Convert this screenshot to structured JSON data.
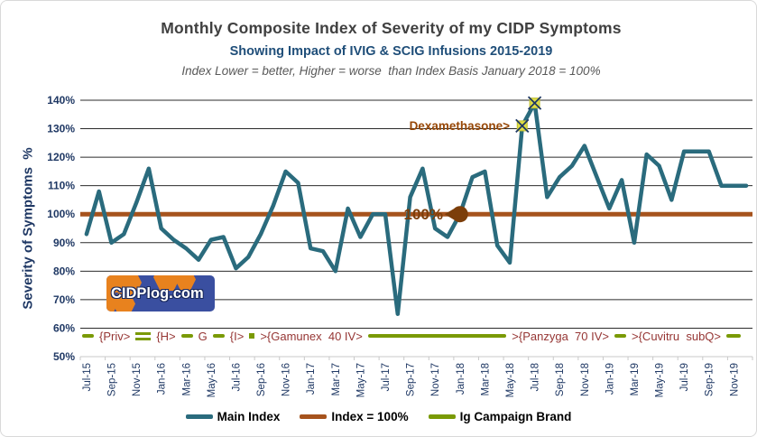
{
  "chart_data": {
    "type": "line",
    "title": "Monthly Composite Index of Severity of my CIDP Symptoms",
    "subtitle": "Showing Impact of IVIG & SCIG Infusions 2015-2019",
    "tagline": "Index Lower = better, Higher = worse  than Index Basis January 2018 = 100%",
    "ylabel": "Severity of Symptoms  %",
    "xlabel": "",
    "ylim": [
      50,
      140
    ],
    "ytick_step": 10,
    "ytick_suffix": "%",
    "xtick_every": 2,
    "grid": true,
    "legend_position": "bottom",
    "x": [
      "Jul-15",
      "Aug-15",
      "Sep-15",
      "Oct-15",
      "Nov-15",
      "Dec-15",
      "Jan-16",
      "Feb-16",
      "Mar-16",
      "Apr-16",
      "May-16",
      "Jun-16",
      "Jul-16",
      "Aug-16",
      "Sep-16",
      "Oct-16",
      "Nov-16",
      "Dec-16",
      "Jan-17",
      "Feb-17",
      "Mar-17",
      "Apr-17",
      "May-17",
      "Jun-17",
      "Jul-17",
      "Aug-17",
      "Sep-17",
      "Oct-17",
      "Nov-17",
      "Dec-17",
      "Jan-18",
      "Feb-18",
      "Mar-18",
      "Apr-18",
      "May-18",
      "Jun-18",
      "Jul-18",
      "Aug-18",
      "Sep-18",
      "Oct-18",
      "Nov-18",
      "Dec-18",
      "Jan-19",
      "Feb-19",
      "Mar-19",
      "Apr-19",
      "May-19",
      "Jun-19",
      "Jul-19",
      "Aug-19",
      "Sep-19",
      "Oct-19",
      "Nov-19",
      "Dec-19"
    ],
    "series": [
      {
        "name": "Main Index",
        "color": "#2A6B7D",
        "values": [
          93,
          108,
          90,
          93,
          104,
          116,
          95,
          91,
          88,
          84,
          91,
          92,
          81,
          85,
          93,
          103,
          115,
          111,
          88,
          87,
          80,
          102,
          92,
          100,
          100,
          65,
          106,
          116,
          95,
          92,
          100,
          113,
          115,
          89,
          83,
          131,
          139,
          106,
          113,
          117,
          124,
          113,
          102,
          112,
          90,
          121,
          117,
          105,
          122,
          122,
          122,
          110,
          110,
          110
        ]
      },
      {
        "name": "Index = 100%",
        "color": "#A6531D",
        "constant": 100
      },
      {
        "name": "Ig Campaign Brand",
        "color": "#7A9A05",
        "rendered_as": "annotation-timeline"
      }
    ],
    "annotations": {
      "dexamethasone": {
        "label": "Dexamethasone>",
        "color": "#974706",
        "points_to_month": "Jun-18"
      },
      "index_100": {
        "label": "100%",
        "arrow": "left-triangle",
        "color": "#7C3E0A",
        "at_month": "Jan-18",
        "value": 100
      },
      "highlight_markers": {
        "shape": "x-square",
        "fill": "#E0DE45",
        "cross_color": "#1F3864",
        "months": [
          "Jun-18",
          "Jul-18"
        ]
      },
      "campaign_text_color": "#963634",
      "campaign_items": [
        {
          "glyph": "dash"
        },
        {
          "label": "{Priv>"
        },
        {
          "glyph": "dash-double"
        },
        {
          "label": "{H>"
        },
        {
          "glyph": "dash"
        },
        {
          "label": "G"
        },
        {
          "glyph": "dash"
        },
        {
          "label": "{I>"
        },
        {
          "glyph": "square"
        },
        {
          "label": ">{Gamunex  40 IV>"
        },
        {
          "glyph": "line"
        },
        {
          "label": ">{Panzyga  70 IV>"
        },
        {
          "glyph": "dash"
        },
        {
          "label": ">{Cuvitru  subQ>"
        },
        {
          "glyph": "dash-end"
        }
      ]
    }
  },
  "legend": {
    "items": [
      {
        "label": "Main Index",
        "color": "#2A6B7D"
      },
      {
        "label": "Index = 100%",
        "color": "#A6531D"
      },
      {
        "label": "Ig Campaign Brand",
        "color": "#7A9A05"
      }
    ]
  },
  "logo": {
    "text": "CIDPlog.com"
  }
}
